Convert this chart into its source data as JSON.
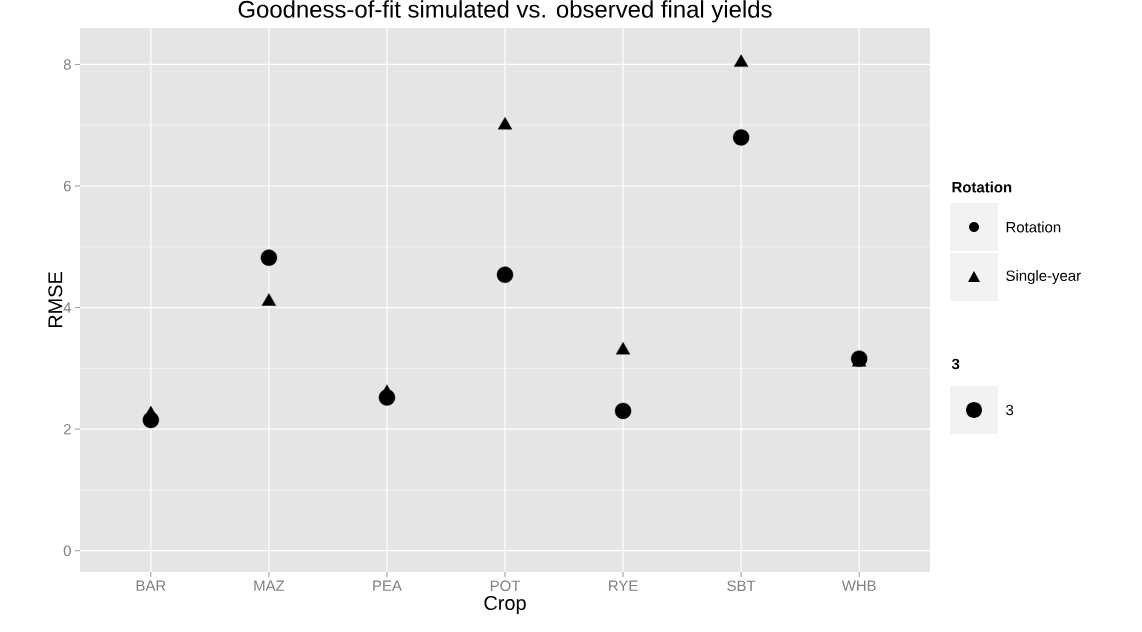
{
  "chart_data": {
    "type": "scatter",
    "title": "Goodness-of-fit simulated vs. observed final yields",
    "xlabel": "Crop",
    "ylabel": "RMSE",
    "categories": [
      "BAR",
      "MAZ",
      "PEA",
      "POT",
      "RYE",
      "SBT",
      "WHB"
    ],
    "series": [
      {
        "name": "Rotation",
        "color": "#000000",
        "marker": "circle",
        "values": [
          2.15,
          4.82,
          2.52,
          4.54,
          2.3,
          6.8,
          3.16
        ]
      },
      {
        "name": "Single-year",
        "color": "#000000",
        "marker": "triangle",
        "values": [
          2.25,
          4.1,
          2.6,
          7.0,
          3.3,
          8.03,
          3.1
        ]
      }
    ],
    "ylim": [
      -0.35,
      8.6
    ],
    "yticks": [
      0,
      2,
      4,
      6,
      8
    ],
    "grid": true,
    "legend": "right",
    "legend_title": "Rotation",
    "annotations": [
      "3",
      "3"
    ]
  }
}
